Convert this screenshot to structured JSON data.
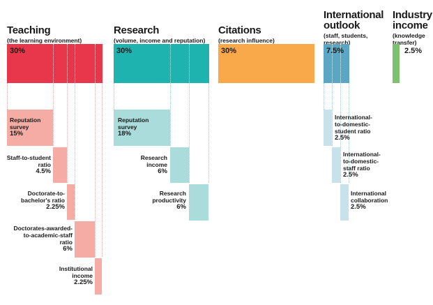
{
  "colors": {
    "teaching": "#e8364b",
    "teaching_light": "#f4aca4",
    "research": "#1fb3b0",
    "research_light": "#a9dcdb",
    "citations": "#f9a84a",
    "international": "#5aa6c4",
    "international_light": "#c7e2ea",
    "industry": "#7cc070"
  },
  "categories": [
    {
      "title": "Teaching",
      "subtitle": "(the learning environment)",
      "weight": "30%"
    },
    {
      "title": "Research",
      "subtitle": "(volume, income and reputation)",
      "weight": "30%"
    },
    {
      "title": "Citations",
      "subtitle": "(research influence)",
      "weight": "30%"
    },
    {
      "title_l1": "International",
      "title_l2": "outlook",
      "subtitle_l1": "(staff, students,",
      "subtitle_l2": "research)",
      "weight": "7.5%"
    },
    {
      "title_l1": "Industry",
      "title_l2": "income",
      "subtitle_l1": "(knowledge",
      "subtitle_l2": "transfer)",
      "weight": "2.5%"
    }
  ],
  "teaching_items": [
    {
      "l1": "Reputation",
      "l2": "survey",
      "value": "15%"
    },
    {
      "l1": "Staff-to-student",
      "l2": "ratio",
      "value": "4.5%"
    },
    {
      "l1": "Doctorate-to-",
      "l2": "bachelor's ratio",
      "value": "2.25%"
    },
    {
      "l1": "Doctorates-awarded-",
      "l2": "to-academic-staff",
      "l3": "ratio",
      "value": "6%"
    },
    {
      "l1": "Institutional",
      "l2": "income",
      "value": "2.25%"
    }
  ],
  "research_items": [
    {
      "l1": "Reputation",
      "l2": "survey",
      "value": "18%"
    },
    {
      "l1": "Research",
      "l2": "income",
      "value": "6%"
    },
    {
      "l1": "Research",
      "l2": "productivity",
      "value": "6%"
    }
  ],
  "international_items": [
    {
      "l1": "International-",
      "l2": "to-domestic-",
      "l3": "student ratio",
      "value": "2.5%"
    },
    {
      "l1": "International-",
      "l2": "to-domestic-",
      "l3": "staff ratio",
      "value": "2.5%"
    },
    {
      "l1": "International",
      "l2": "collaboration",
      "value": "2.5%"
    }
  ]
}
